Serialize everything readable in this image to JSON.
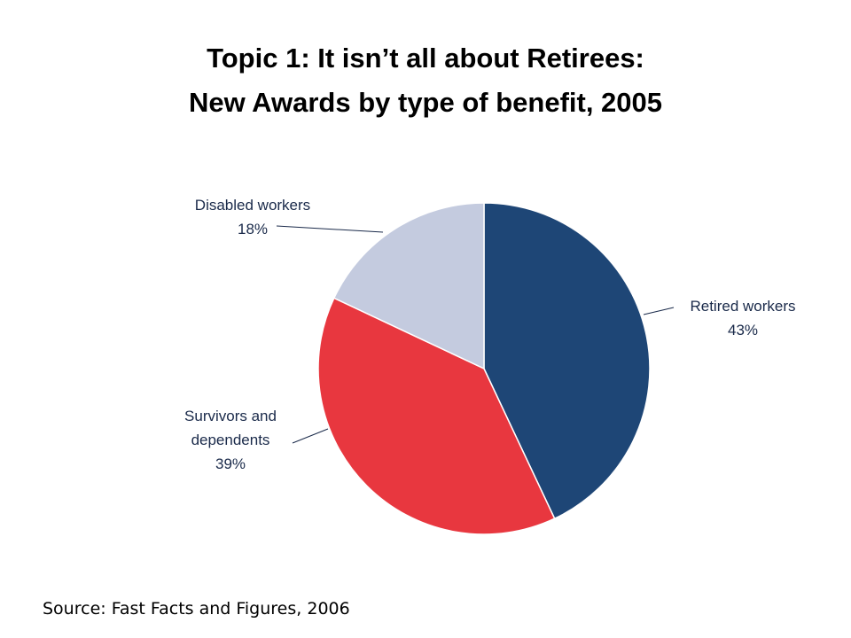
{
  "chart_data": {
    "type": "pie",
    "title": [
      "Topic 1: It isn’t all about Retirees:",
      "New Awards by type of benefit, 2005"
    ],
    "categories": [
      "Retired workers",
      "Survivors and dependents",
      "Disabled workers"
    ],
    "values": [
      43,
      39,
      18
    ],
    "value_labels": [
      "43%",
      "39%",
      "18%"
    ],
    "colors": [
      "#1e4676",
      "#e8373f",
      "#c4cbdf"
    ],
    "source": "Source: Fast Facts and Figures, 2006"
  }
}
